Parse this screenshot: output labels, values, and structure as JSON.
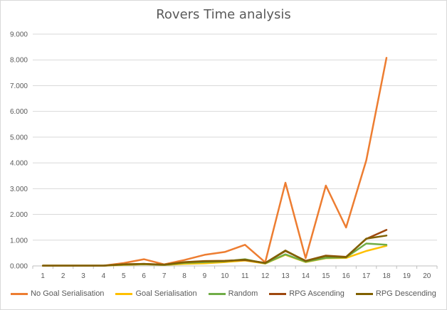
{
  "chart_data": {
    "type": "line",
    "title": "Rovers Time analysis",
    "xlabel": "",
    "ylabel": "",
    "categories": [
      "1",
      "2",
      "3",
      "4",
      "5",
      "6",
      "7",
      "8",
      "9",
      "10",
      "11",
      "12",
      "13",
      "14",
      "15",
      "16",
      "17",
      "18",
      "19",
      "20"
    ],
    "ylim": [
      0,
      9000
    ],
    "yticks": [
      "0.000",
      "1.000",
      "2.000",
      "3.000",
      "4.000",
      "5.000",
      "6.000",
      "7.000",
      "8.000",
      "9.000"
    ],
    "grid": true,
    "legend_position": "bottom",
    "series": [
      {
        "name": "No Goal Serialisation",
        "color": "#ed7d31",
        "values": [
          10,
          10,
          10,
          10,
          110,
          260,
          60,
          230,
          430,
          540,
          820,
          140,
          3230,
          300,
          3120,
          1490,
          4100,
          8080,
          null,
          null
        ]
      },
      {
        "name": "Goal Serialisation",
        "color": "#ffc000",
        "values": [
          10,
          10,
          10,
          10,
          40,
          60,
          40,
          80,
          100,
          150,
          210,
          90,
          430,
          150,
          300,
          310,
          580,
          780,
          null,
          null
        ]
      },
      {
        "name": "Random",
        "color": "#70ad47",
        "values": [
          10,
          10,
          10,
          10,
          50,
          70,
          40,
          120,
          150,
          180,
          260,
          100,
          450,
          160,
          310,
          330,
          870,
          820,
          null,
          null
        ]
      },
      {
        "name": "RPG Ascending",
        "color": "#9e480e",
        "values": [
          10,
          10,
          10,
          10,
          60,
          80,
          50,
          150,
          190,
          200,
          230,
          120,
          580,
          200,
          400,
          350,
          1050,
          1400,
          null,
          null
        ]
      },
      {
        "name": "RPG Descending",
        "color": "#806000",
        "values": [
          10,
          10,
          10,
          10,
          60,
          80,
          50,
          140,
          180,
          190,
          240,
          110,
          600,
          190,
          380,
          340,
          1060,
          1180,
          null,
          null
        ]
      }
    ]
  }
}
